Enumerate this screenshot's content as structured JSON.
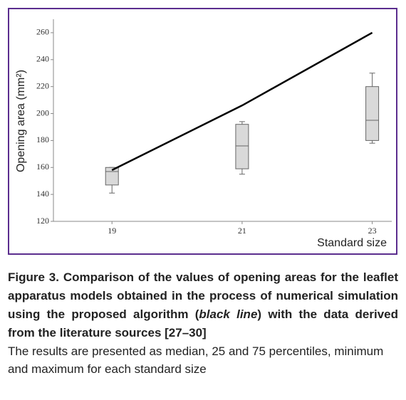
{
  "chart_data": {
    "type": "box",
    "x_label": "Standard size",
    "y_label": "Opening area (mm²)",
    "x": [
      19,
      21,
      23
    ],
    "xlim": [
      18.1,
      23.3
    ],
    "xticks": [
      19,
      21,
      23
    ],
    "ylim": [
      120,
      270
    ],
    "yticks": [
      120,
      140,
      160,
      180,
      200,
      220,
      240,
      260
    ],
    "series": [
      {
        "type": "box",
        "color": "#d9d9d9",
        "edge_color": "#666666",
        "min": [
          141,
          155,
          178
        ],
        "q1": [
          147,
          159,
          180
        ],
        "median": [
          157,
          176,
          195
        ],
        "q3": [
          160,
          192,
          220
        ],
        "max": [
          160,
          194,
          230
        ]
      },
      {
        "type": "line",
        "color": "#000000",
        "values": [
          158,
          206,
          260
        ]
      }
    ]
  },
  "caption": {
    "bold_start": "Figure 3. Comparison of the values of opening areas for the leaflet apparatus models obtained in the process of numerical simulation using the proposed algorithm (",
    "italic": "black line",
    "bold_end": ") with the data derived from the literature sources [27–30]",
    "note": "The results are presented as median, 25 and 75 percentiles, minimum and maximum for each standard size"
  }
}
